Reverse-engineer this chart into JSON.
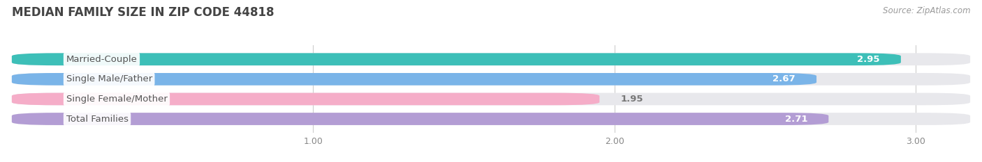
{
  "title": "MEDIAN FAMILY SIZE IN ZIP CODE 44818",
  "source": "Source: ZipAtlas.com",
  "categories": [
    "Married-Couple",
    "Single Male/Father",
    "Single Female/Mother",
    "Total Families"
  ],
  "values": [
    2.95,
    2.67,
    1.95,
    2.71
  ],
  "bar_colors": [
    "#3dbfb8",
    "#7ab4e8",
    "#f5adc8",
    "#b39dd4"
  ],
  "bar_bg_color": "#e8e8ec",
  "xlim_left": 0.0,
  "xlim_right": 3.18,
  "xticks": [
    1.0,
    2.0,
    3.0
  ],
  "bar_height": 0.62,
  "bar_gap": 0.38,
  "label_fontsize": 9.5,
  "value_fontsize": 9.5,
  "title_fontsize": 12,
  "source_fontsize": 8.5,
  "background_color": "#ffffff",
  "grid_color": "#cccccc",
  "tick_color": "#888888",
  "title_color": "#444444",
  "source_color": "#999999",
  "value_inside_color": "#ffffff",
  "value_outside_color": "#777777",
  "label_text_color": "#555555",
  "value_inside_threshold": 2.4
}
